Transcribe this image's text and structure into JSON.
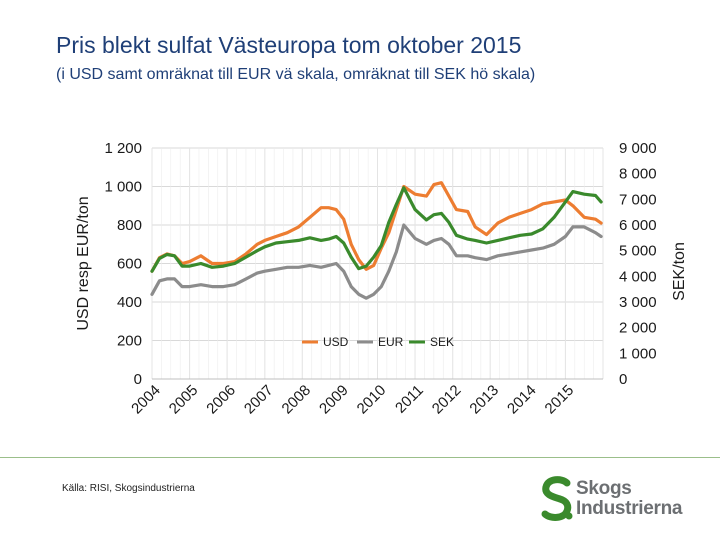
{
  "header": {
    "title": "Pris blekt sulfat Västeuropa tom oktober 2015",
    "subtitle": "(i USD samt omräknat till EUR vä skala, omräknat till SEK hö skala)"
  },
  "footer": {
    "source": "Källa: RISI, Skogsindustrierna",
    "logo_line1": "Skogs",
    "logo_line2": "Industrierna"
  },
  "colors": {
    "usd": "#ed7d31",
    "eur": "#8c8c8c",
    "sek": "#3a8a2c",
    "grid": "#d9d9d9",
    "text": "#1f3f77"
  },
  "chart_data": {
    "type": "line",
    "title": "Pris blekt sulfat Västeuropa tom oktober 2015",
    "ylabel": "USD resp EUR/ton",
    "y2label": "SEK/ton",
    "ylim": [
      0,
      1200
    ],
    "y2lim": [
      0,
      9000
    ],
    "yticks": [
      0,
      200,
      400,
      600,
      800,
      1000,
      1200
    ],
    "y2ticks": [
      0,
      1000,
      2000,
      3000,
      4000,
      5000,
      6000,
      7000,
      8000,
      9000
    ],
    "ytick_labels": [
      "0",
      "200",
      "400",
      "600",
      "800",
      "1 000",
      "1 200"
    ],
    "y2tick_labels": [
      "0",
      "1 000",
      "2 000",
      "3 000",
      "4 000",
      "5 000",
      "6 000",
      "7 000",
      "8 000",
      "9 000"
    ],
    "xlim": [
      2004,
      2016.0
    ],
    "categories": [
      "2004",
      "2005",
      "2006",
      "2007",
      "2008",
      "2009",
      "2010",
      "2011",
      "2012",
      "2013",
      "2014",
      "2015"
    ],
    "legend": [
      "USD",
      "EUR",
      "SEK"
    ],
    "legend_position": "bottom-center",
    "series": [
      {
        "name": "USD",
        "axis": "left",
        "x": [
          2004.0,
          2004.2,
          2004.4,
          2004.6,
          2004.8,
          2005.0,
          2005.3,
          2005.6,
          2005.9,
          2006.2,
          2006.5,
          2006.8,
          2007.0,
          2007.3,
          2007.6,
          2007.9,
          2008.2,
          2008.5,
          2008.7,
          2008.9,
          2009.1,
          2009.3,
          2009.5,
          2009.7,
          2009.9,
          2010.1,
          2010.3,
          2010.5,
          2010.7,
          2011.0,
          2011.3,
          2011.5,
          2011.7,
          2011.9,
          2012.1,
          2012.4,
          2012.6,
          2012.9,
          2013.2,
          2013.5,
          2013.8,
          2014.1,
          2014.4,
          2014.7,
          2015.0,
          2015.2,
          2015.5,
          2015.8,
          2015.95
        ],
        "values": [
          560,
          630,
          650,
          640,
          600,
          610,
          640,
          600,
          600,
          610,
          650,
          700,
          720,
          740,
          760,
          790,
          840,
          890,
          890,
          880,
          830,
          700,
          620,
          570,
          590,
          680,
          760,
          880,
          1000,
          960,
          950,
          1010,
          1020,
          950,
          880,
          870,
          790,
          750,
          810,
          840,
          860,
          880,
          910,
          920,
          930,
          900,
          840,
          830,
          810
        ]
      },
      {
        "name": "EUR",
        "axis": "left",
        "x": [
          2004.0,
          2004.2,
          2004.4,
          2004.6,
          2004.8,
          2005.0,
          2005.3,
          2005.6,
          2005.9,
          2006.2,
          2006.5,
          2006.8,
          2007.0,
          2007.3,
          2007.6,
          2007.9,
          2008.2,
          2008.5,
          2008.7,
          2008.9,
          2009.1,
          2009.3,
          2009.5,
          2009.7,
          2009.9,
          2010.1,
          2010.3,
          2010.5,
          2010.7,
          2011.0,
          2011.3,
          2011.5,
          2011.7,
          2011.9,
          2012.1,
          2012.4,
          2012.6,
          2012.9,
          2013.2,
          2013.5,
          2013.8,
          2014.1,
          2014.4,
          2014.7,
          2015.0,
          2015.2,
          2015.5,
          2015.8,
          2015.95
        ],
        "values": [
          440,
          510,
          520,
          520,
          480,
          480,
          490,
          480,
          480,
          490,
          520,
          550,
          560,
          570,
          580,
          580,
          590,
          580,
          590,
          600,
          560,
          480,
          440,
          420,
          440,
          480,
          560,
          660,
          800,
          730,
          700,
          720,
          730,
          700,
          640,
          640,
          630,
          620,
          640,
          650,
          660,
          670,
          680,
          700,
          740,
          790,
          790,
          760,
          740
        ]
      },
      {
        "name": "SEK",
        "axis": "right",
        "x": [
          2004.0,
          2004.2,
          2004.4,
          2004.6,
          2004.8,
          2005.0,
          2005.3,
          2005.6,
          2005.9,
          2006.2,
          2006.5,
          2006.8,
          2007.0,
          2007.3,
          2007.6,
          2007.9,
          2008.2,
          2008.5,
          2008.7,
          2008.9,
          2009.1,
          2009.3,
          2009.5,
          2009.7,
          2009.9,
          2010.1,
          2010.3,
          2010.5,
          2010.7,
          2011.0,
          2011.3,
          2011.5,
          2011.7,
          2011.9,
          2012.1,
          2012.4,
          2012.6,
          2012.9,
          2013.2,
          2013.5,
          2013.8,
          2014.1,
          2014.4,
          2014.7,
          2015.0,
          2015.2,
          2015.5,
          2015.8,
          2015.95
        ],
        "values": [
          4200,
          4700,
          4850,
          4800,
          4400,
          4400,
          4500,
          4350,
          4400,
          4500,
          4750,
          5000,
          5150,
          5300,
          5350,
          5400,
          5500,
          5400,
          5450,
          5550,
          5300,
          4750,
          4300,
          4400,
          4750,
          5200,
          6100,
          6800,
          7450,
          6600,
          6200,
          6400,
          6450,
          6100,
          5600,
          5450,
          5400,
          5300,
          5400,
          5500,
          5600,
          5650,
          5850,
          6300,
          6900,
          7300,
          7200,
          7150,
          6900
        ]
      }
    ]
  }
}
